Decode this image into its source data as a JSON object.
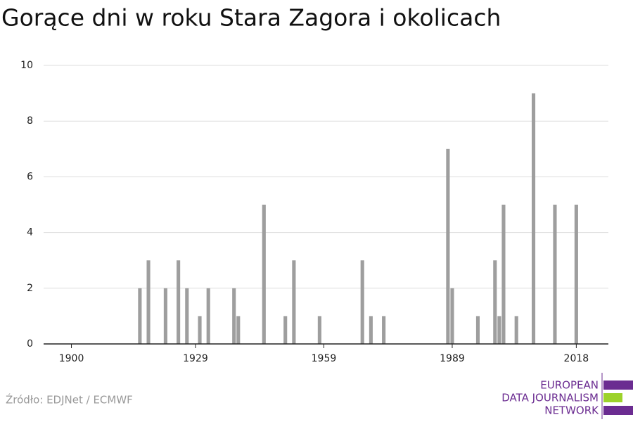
{
  "chart_data": {
    "type": "bar",
    "title": "Gorące dni w roku Stara Zagora i okolicach",
    "x": [
      1916,
      1918,
      1922,
      1925,
      1927,
      1930,
      1932,
      1938,
      1939,
      1945,
      1950,
      1952,
      1958,
      1968,
      1970,
      1973,
      1988,
      1989,
      1995,
      1999,
      2000,
      2001,
      2004,
      2008,
      2013,
      2018
    ],
    "values": [
      2,
      3,
      2,
      3,
      2,
      1,
      2,
      2,
      1,
      5,
      1,
      3,
      1,
      3,
      1,
      1,
      7,
      2,
      1,
      3,
      1,
      5,
      1,
      9,
      5,
      5
    ],
    "color": "#9e9e9e",
    "xlim": [
      1893.5,
      2025.5
    ],
    "xticks": [
      1900,
      1929,
      1959,
      1989,
      2018
    ],
    "ylim": [
      0,
      10
    ],
    "yticks": [
      0,
      2,
      4,
      6,
      8,
      10
    ],
    "grid": true,
    "source": "Źródło: EDJNet / ECMWF"
  },
  "logo": {
    "lines": [
      "EUROPEAN",
      "DATA JOURNALISM",
      "NETWORK"
    ]
  }
}
